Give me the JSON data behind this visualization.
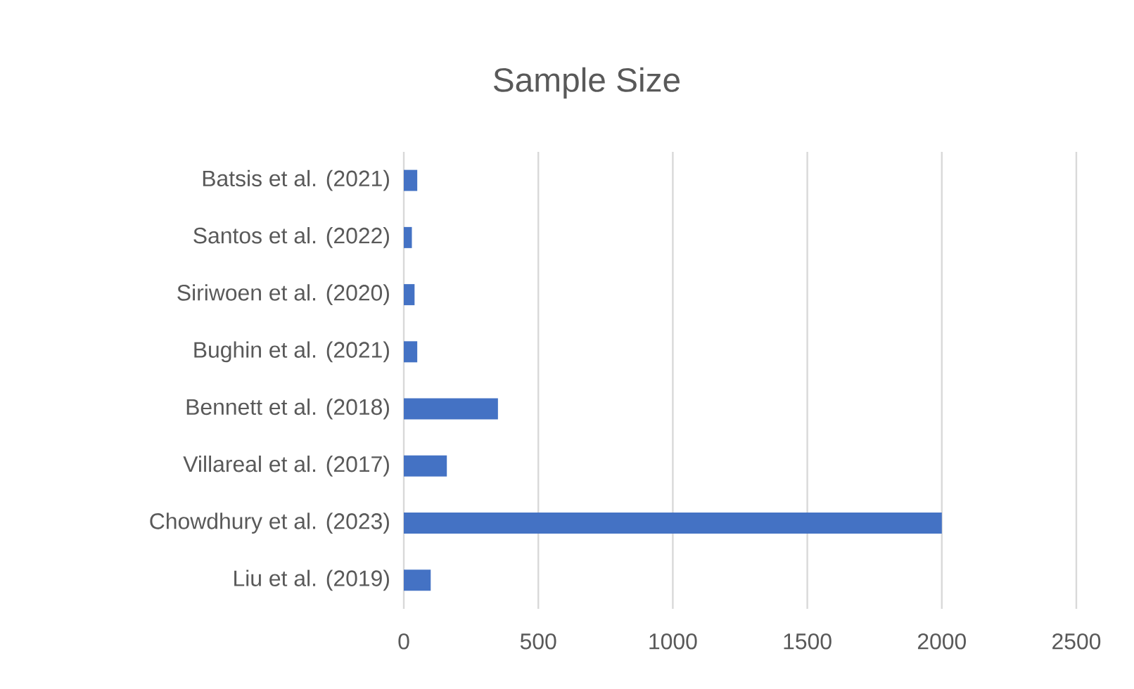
{
  "chart_data": {
    "type": "bar",
    "orientation": "horizontal",
    "title": "Sample Size",
    "categories": [
      "Batsis et al. (2021)",
      "Santos et al. (2022)",
      "Siriwoen et al. (2020)",
      "Bughin et al. (2021)",
      "Bennett et al. (2018)",
      "Villareal et al. (2017)",
      "Chowdhury et al. (2023)",
      "Liu et al. (2019)"
    ],
    "values": [
      50,
      30,
      40,
      50,
      350,
      160,
      2000,
      100
    ],
    "color": "#4472c4",
    "xlim": [
      0,
      2500
    ],
    "xticks": [
      0,
      500,
      1000,
      1500,
      2000,
      2500
    ],
    "grid": "x"
  }
}
